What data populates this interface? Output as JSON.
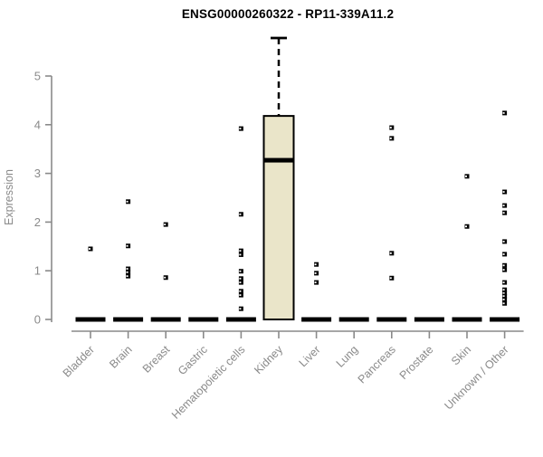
{
  "chart_data": {
    "type": "boxplot",
    "title": "ENSG00000260322 - RP11-339A11.2",
    "xlabel": "",
    "ylabel": "Expression",
    "ylim": [
      0,
      5
    ],
    "yticks": [
      0,
      1,
      2,
      3,
      4,
      5
    ],
    "grid": false,
    "legend": "none",
    "categories": [
      "Bladder",
      "Brain",
      "Breast",
      "Gastric",
      "Hematopoietic cells",
      "Kidney",
      "Liver",
      "Lung",
      "Pancreas",
      "Prostate",
      "Skin",
      "Unknown / Other"
    ],
    "boxes": [
      {
        "category": "Bladder",
        "q1": 0,
        "median": 0,
        "q3": 0,
        "whisker_low": 0,
        "whisker_high": 0,
        "outliers": [
          1.45
        ]
      },
      {
        "category": "Brain",
        "q1": 0,
        "median": 0,
        "q3": 0,
        "whisker_low": 0,
        "whisker_high": 0,
        "outliers": [
          2.42,
          1.51,
          1.04,
          0.97,
          0.89
        ]
      },
      {
        "category": "Breast",
        "q1": 0,
        "median": 0,
        "q3": 0,
        "whisker_low": 0,
        "whisker_high": 0,
        "outliers": [
          1.95,
          0.86
        ]
      },
      {
        "category": "Gastric",
        "q1": 0,
        "median": 0,
        "q3": 0,
        "whisker_low": 0,
        "whisker_high": 0,
        "outliers": []
      },
      {
        "category": "Hematopoietic cells",
        "q1": 0,
        "median": 0,
        "q3": 0,
        "whisker_low": 0,
        "whisker_high": 0,
        "outliers": [
          3.92,
          2.16,
          1.41,
          1.33,
          0.99,
          0.84,
          0.76,
          0.58,
          0.5,
          0.22
        ]
      },
      {
        "category": "Kidney",
        "q1": 0,
        "median": 3.27,
        "q3": 4.18,
        "whisker_low": 0,
        "whisker_high": 5.78,
        "outliers": []
      },
      {
        "category": "Liver",
        "q1": 0,
        "median": 0,
        "q3": 0,
        "whisker_low": 0,
        "whisker_high": 0,
        "outliers": [
          1.13,
          0.95,
          0.76
        ]
      },
      {
        "category": "Lung",
        "q1": 0,
        "median": 0,
        "q3": 0,
        "whisker_low": 0,
        "whisker_high": 0,
        "outliers": []
      },
      {
        "category": "Pancreas",
        "q1": 0,
        "median": 0,
        "q3": 0,
        "whisker_low": 0,
        "whisker_high": 0,
        "outliers": [
          3.94,
          3.72,
          1.36,
          0.85
        ]
      },
      {
        "category": "Prostate",
        "q1": 0,
        "median": 0,
        "q3": 0,
        "whisker_low": 0,
        "whisker_high": 0,
        "outliers": []
      },
      {
        "category": "Skin",
        "q1": 0,
        "median": 0,
        "q3": 0,
        "whisker_low": 0,
        "whisker_high": 0,
        "outliers": [
          2.94,
          1.91
        ]
      },
      {
        "category": "Unknown / Other",
        "q1": 0,
        "median": 0,
        "q3": 0,
        "whisker_low": 0,
        "whisker_high": 0,
        "outliers": [
          4.24,
          2.62,
          2.34,
          2.19,
          1.6,
          1.34,
          1.11,
          1.02,
          0.76,
          0.61,
          0.54,
          0.48,
          0.41,
          0.33
        ]
      }
    ],
    "colors": {
      "box_fill": "#EAE5C9",
      "box_stroke": "#000000",
      "median": "#000000",
      "point": "#000000",
      "point_center": "#ffffff",
      "axis": "#8a8a8a",
      "label": "#8a8a8a",
      "title": "#000000",
      "background": "#ffffff"
    }
  }
}
